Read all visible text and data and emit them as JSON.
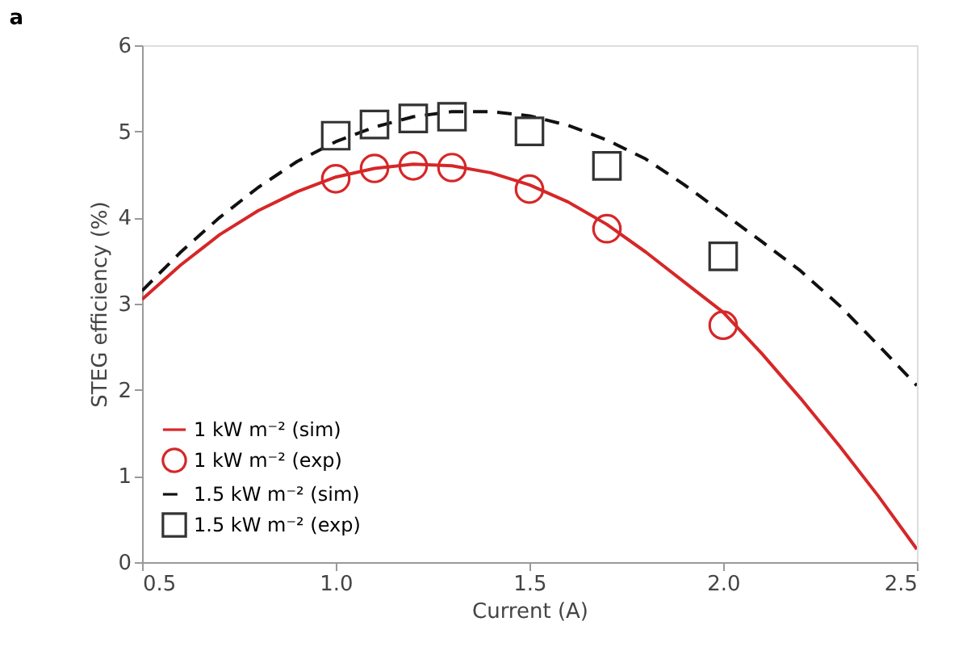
{
  "chart_data": {
    "type": "line",
    "title": "a",
    "xlabel": "Current (A)",
    "ylabel": "STEG efficiency (%)",
    "xlim": [
      0.5,
      2.5
    ],
    "xticks": [
      {
        "value": 0.5,
        "label": "0.5"
      },
      {
        "value": 1.0,
        "label": "1.0"
      },
      {
        "value": 1.5,
        "label": "1.5"
      },
      {
        "value": 2.0,
        "label": "2.0"
      },
      {
        "value": 2.5,
        "label": "2.5"
      }
    ],
    "ylim": [
      0,
      6
    ],
    "yticks": [
      0,
      1,
      2,
      3,
      4,
      5,
      6
    ],
    "grid": false,
    "legend": "bottom left",
    "series": [
      {
        "name": "1 kW m⁻² (sim)",
        "type": "line",
        "line_style": "solid",
        "color": "#d62728",
        "x": [
          0.5,
          0.6,
          0.7,
          0.8,
          0.9,
          1.0,
          1.1,
          1.2,
          1.3,
          1.4,
          1.5,
          1.6,
          1.7,
          1.8,
          1.9,
          2.0,
          2.1,
          2.2,
          2.3,
          2.4,
          2.5
        ],
        "values": [
          3.05,
          3.45,
          3.8,
          4.08,
          4.3,
          4.47,
          4.57,
          4.62,
          4.6,
          4.52,
          4.38,
          4.18,
          3.92,
          3.6,
          3.25,
          2.9,
          2.42,
          1.9,
          1.35,
          0.77,
          0.15
        ]
      },
      {
        "name": "1 kW m⁻² (exp)",
        "type": "scatter",
        "marker": "circle",
        "color": "#d62728",
        "x": [
          1.0,
          1.1,
          1.2,
          1.3,
          1.5,
          1.7,
          2.0
        ],
        "values": [
          4.45,
          4.57,
          4.6,
          4.58,
          4.33,
          3.87,
          2.75
        ]
      },
      {
        "name": "1.5 kW m⁻² (sim)",
        "type": "line",
        "line_style": "dashed",
        "color": "#111111",
        "x": [
          0.5,
          0.6,
          0.7,
          0.8,
          0.9,
          1.0,
          1.1,
          1.2,
          1.3,
          1.4,
          1.5,
          1.6,
          1.7,
          1.8,
          1.9,
          2.0,
          2.1,
          2.2,
          2.3,
          2.4,
          2.5
        ],
        "values": [
          3.15,
          3.6,
          4.0,
          4.35,
          4.65,
          4.88,
          5.05,
          5.17,
          5.23,
          5.23,
          5.18,
          5.07,
          4.9,
          4.68,
          4.38,
          4.05,
          3.72,
          3.38,
          2.98,
          2.52,
          2.05
        ]
      },
      {
        "name": "1.5 kW m⁻² (exp)",
        "type": "scatter",
        "marker": "square",
        "color": "#333333",
        "x": [
          1.0,
          1.1,
          1.2,
          1.3,
          1.5,
          1.7,
          2.0
        ],
        "values": [
          4.95,
          5.08,
          5.15,
          5.17,
          5.0,
          4.6,
          3.55
        ]
      }
    ]
  }
}
